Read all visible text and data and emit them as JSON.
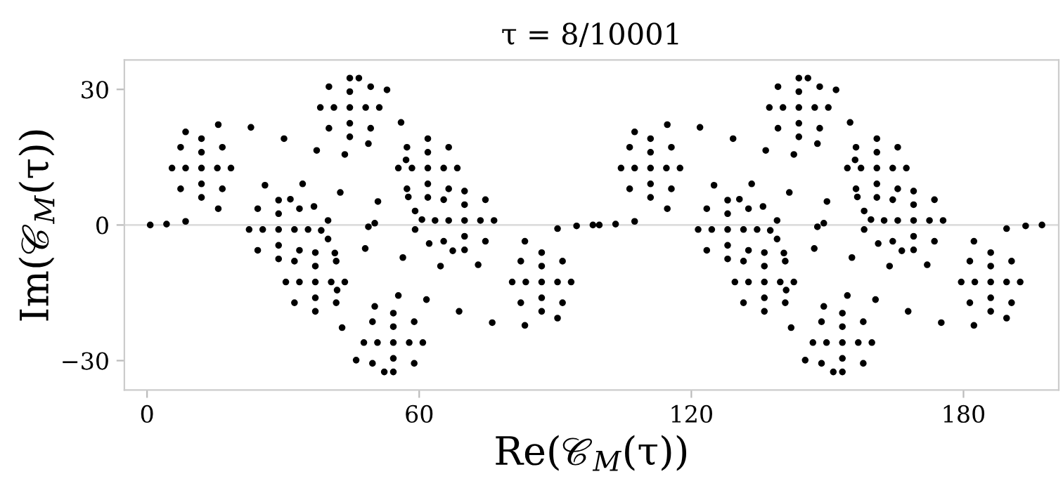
{
  "chart_data": {
    "type": "scatter",
    "title": "τ = 8/10001",
    "xlabel": "Re(𝒞$_{M}$(τ))",
    "ylabel": "Im(𝒞$_{M}$(τ))",
    "xlim": [
      -5,
      201
    ],
    "ylim": [
      -36.5,
      36.5
    ],
    "xticks": [
      0,
      60,
      120,
      180
    ],
    "yticks": [
      {
        "value": -30,
        "label": "−30"
      },
      0,
      30
    ],
    "grid": false,
    "legend": false,
    "marker": "circle",
    "ref_lines": [
      {
        "axis": "y",
        "value": 0,
        "color": "#dddddd"
      }
    ],
    "series": [
      {
        "color": "#000000",
        "x": [
          18.5,
          16.6,
          12,
          7.4,
          5.5,
          7.4,
          12,
          16.6,
          15.5,
          12,
          8.5,
          12,
          12,
          51.2,
          49.3,
          44.7,
          40.1,
          38.2,
          40.1,
          44.7,
          49.3,
          48.2,
          44.7,
          41.2,
          44.7,
          44.7,
          68.4,
          66.5,
          61.9,
          57.3,
          55.4,
          57.3,
          61.9,
          66.5,
          65.4,
          61.9,
          58.4,
          61.9,
          61.9,
          76.5,
          74.6,
          70,
          65.4,
          63.5,
          65.4,
          70,
          74.6,
          73.5,
          70,
          66.5,
          70,
          70,
          35.5,
          33.6,
          29,
          24.4,
          22.5,
          24.4,
          29,
          33.6,
          32.5,
          29,
          25.5,
          29,
          29,
          43.6,
          41.7,
          37.1,
          32.5,
          30.6,
          32.5,
          37.1,
          41.7,
          40.6,
          37.1,
          33.6,
          37.1,
          37.1,
          60.8,
          58.9,
          54.3,
          49.7,
          47.8,
          49.7,
          54.3,
          58.9,
          57.8,
          54.3,
          50.8,
          54.3,
          54.3,
          93.5,
          91.6,
          87,
          82.4,
          80.5,
          82.4,
          87,
          91.6,
          90.5,
          87,
          83.5,
          87,
          87,
          0.7,
          4.3,
          8.5,
          15.7,
          8.5,
          15.7,
          22.9,
          30.2,
          37.4,
          43.6,
          48.8,
          46.7,
          52.9,
          56.0,
          57.1,
          57.6,
          59.1,
          62.2,
          67.4,
          26.0,
          34.3,
          42.6,
          50.9,
          59.1,
          38.4,
          48.8,
          98.3,
          94.7,
          90.5,
          83.3,
          90.5,
          83.3,
          76.1,
          68.8,
          61.6,
          55.4,
          50.2,
          52.3,
          46.1,
          43.0,
          41.9,
          41.4,
          39.9,
          36.8,
          31.6,
          73.0,
          64.7,
          56.4,
          48.1,
          39.9,
          60.6,
          50.2
        ],
        "values": [
          12.6,
          17.2,
          19.1,
          17.2,
          12.6,
          8,
          6.1,
          8,
          12.6,
          16.1,
          12.6,
          9.1,
          12.6,
          26,
          30.6,
          32.5,
          30.6,
          26,
          21.4,
          19.5,
          21.4,
          26,
          29.5,
          26,
          22.5,
          26,
          12.6,
          17.2,
          19.1,
          17.2,
          12.6,
          8,
          6.1,
          8,
          12.6,
          16.1,
          12.6,
          9.1,
          12.6,
          1,
          5.6,
          7.5,
          5.6,
          1,
          -3.6,
          -5.5,
          -3.6,
          1,
          4.5,
          1,
          -2.5,
          1,
          -1,
          3.6,
          5.5,
          3.6,
          -1,
          -5.6,
          -7.5,
          -5.6,
          -1,
          2.5,
          -1,
          -4.5,
          -1,
          -12.6,
          -8,
          -6.1,
          -8,
          -12.6,
          -17.2,
          -19.1,
          -17.2,
          -12.6,
          -9.1,
          -12.6,
          -16.1,
          -12.6,
          -26,
          -21.4,
          -19.5,
          -21.4,
          -26,
          -30.6,
          -32.5,
          -30.6,
          -26,
          -22.5,
          -26,
          -29.5,
          -26,
          -12.6,
          -8,
          -6.1,
          -8,
          -12.6,
          -17.2,
          -19.1,
          -17.2,
          -12.6,
          -9.1,
          -12.6,
          -16.1,
          -12.6,
          0,
          0.2,
          0.8,
          3.6,
          20.6,
          22.2,
          21.6,
          19.1,
          16.5,
          15.6,
          18.0,
          32.5,
          29.9,
          22.7,
          14.4,
          6.2,
          -1.0,
          -4.1,
          -5.7,
          8.8,
          9.1,
          7.2,
          5.2,
          3.1,
          -1.2,
          -0.4,
          0,
          -0.2,
          -0.8,
          -3.6,
          -20.6,
          -22.2,
          -21.6,
          -19.1,
          -16.5,
          -15.6,
          -18.0,
          -32.5,
          -29.9,
          -22.7,
          -14.4,
          -6.2,
          1.0,
          4.1,
          5.7,
          -8.8,
          -9.1,
          -7.2,
          -5.2,
          -3.1,
          1.2,
          0.4
        ]
      },
      {
        "color": "#000000",
        "x": [
          117.5,
          115.6,
          111,
          106.4,
          104.5,
          106.4,
          111,
          115.6,
          114.5,
          111,
          107.5,
          111,
          111,
          150.2,
          148.3,
          143.7,
          139.1,
          137.2,
          139.1,
          143.7,
          148.3,
          147.2,
          143.7,
          140.2,
          143.7,
          143.7,
          167.4,
          165.5,
          160.9,
          156.3,
          154.4,
          156.3,
          160.9,
          165.5,
          164.4,
          160.9,
          157.4,
          160.9,
          160.9,
          175.5,
          173.6,
          169,
          164.4,
          162.5,
          164.4,
          169,
          173.6,
          172.5,
          169,
          165.5,
          169,
          169,
          134.5,
          132.6,
          128,
          123.4,
          121.5,
          123.4,
          128,
          132.6,
          131.5,
          128,
          124.5,
          128,
          128,
          142.6,
          140.7,
          136.1,
          131.5,
          129.6,
          131.5,
          136.1,
          140.7,
          139.6,
          136.1,
          132.6,
          136.1,
          136.1,
          159.8,
          157.9,
          153.3,
          148.7,
          146.8,
          148.7,
          153.3,
          157.9,
          156.8,
          153.3,
          149.8,
          153.3,
          153.3,
          192.5,
          190.6,
          186,
          181.4,
          179.5,
          181.4,
          186,
          190.6,
          189.5,
          186,
          182.5,
          186,
          186,
          99.7,
          103.3,
          107.5,
          114.7,
          107.5,
          114.7,
          121.9,
          129.2,
          136.4,
          142.6,
          147.8,
          145.7,
          151.9,
          155,
          156.1,
          156.6,
          158.1,
          161.2,
          166.4,
          125,
          133.3,
          141.6,
          149.9,
          158.1,
          137.4,
          147.8,
          197.3,
          193.7,
          189.5,
          182.3,
          189.5,
          182.3,
          175.1,
          167.8,
          160.6,
          154.4,
          149.2,
          151.3,
          145.1,
          142,
          140.9,
          140.4,
          138.9,
          135.8,
          130.6,
          172,
          163.7,
          155.4,
          147.1,
          138.9,
          159.6,
          149.2
        ],
        "values": [
          12.6,
          17.2,
          19.1,
          17.2,
          12.6,
          8,
          6.1,
          8,
          12.6,
          16.1,
          12.6,
          9.1,
          12.6,
          26,
          30.6,
          32.5,
          30.6,
          26,
          21.4,
          19.5,
          21.4,
          26,
          29.5,
          26,
          22.5,
          26,
          12.6,
          17.2,
          19.1,
          17.2,
          12.6,
          8,
          6.1,
          8,
          12.6,
          16.1,
          12.6,
          9.1,
          12.6,
          1,
          5.6,
          7.5,
          5.6,
          1,
          -3.6,
          -5.5,
          -3.6,
          1,
          4.5,
          1,
          -2.5,
          1,
          -1,
          3.6,
          5.5,
          3.6,
          -1,
          -5.6,
          -7.5,
          -5.6,
          -1,
          2.5,
          -1,
          -4.5,
          -1,
          -12.6,
          -8,
          -6.1,
          -8,
          -12.6,
          -17.2,
          -19.1,
          -17.2,
          -12.6,
          -9.1,
          -12.6,
          -16.1,
          -12.6,
          -26,
          -21.4,
          -19.5,
          -21.4,
          -26,
          -30.6,
          -32.5,
          -30.6,
          -26,
          -22.5,
          -26,
          -29.5,
          -26,
          -12.6,
          -8,
          -6.1,
          -8,
          -12.6,
          -17.2,
          -19.1,
          -17.2,
          -12.6,
          -9.1,
          -12.6,
          -16.1,
          -12.6,
          0,
          0.2,
          0.8,
          3.6,
          20.6,
          22.2,
          21.6,
          19.1,
          16.5,
          15.6,
          18.0,
          32.5,
          29.9,
          22.7,
          14.4,
          6.2,
          -1.0,
          -4.1,
          -5.7,
          8.8,
          9.1,
          7.2,
          5.2,
          3.1,
          -1.2,
          -0.4,
          0,
          -0.2,
          -0.8,
          -3.6,
          -20.6,
          -22.2,
          -21.6,
          -19.1,
          -16.5,
          -15.6,
          -18.0,
          -32.5,
          -29.9,
          -22.7,
          -14.4,
          -6.2,
          1.0,
          4.1,
          5.7,
          -8.8,
          -9.1,
          -7.2,
          -5.2,
          -3.1,
          1.2,
          0.4
        ]
      }
    ]
  }
}
